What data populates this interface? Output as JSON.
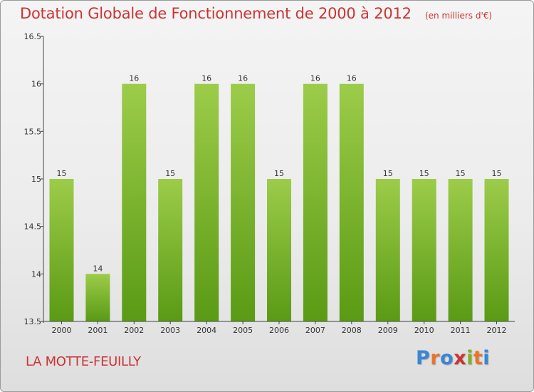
{
  "title": "Dotation Globale de Fonctionnement de 2000 à 2012",
  "unit": "(en milliers d'€)",
  "commune": "LA MOTTE-FEUILLY",
  "logo": {
    "text": "Proxiti",
    "colors": [
      "#3a86d4",
      "#e8752a",
      "#3a86d4",
      "#cc3333",
      "#7cb32a",
      "#e8752a",
      "#3a86d4"
    ]
  },
  "colors": {
    "title": "#cc3333",
    "bar_light": "#9ccc4a",
    "bar_dark": "#5a9a14",
    "axis": "#444444",
    "text": "#333333"
  },
  "chart_data": {
    "type": "bar",
    "categories": [
      "2000",
      "2001",
      "2002",
      "2003",
      "2004",
      "2005",
      "2006",
      "2007",
      "2008",
      "2009",
      "2010",
      "2011",
      "2012"
    ],
    "values": [
      15,
      14,
      16,
      15,
      16,
      16,
      15,
      16,
      16,
      15,
      15,
      15,
      15
    ],
    "data_labels": [
      "15",
      "14",
      "16",
      "15",
      "16",
      "16",
      "15",
      "16",
      "16",
      "15",
      "15",
      "15",
      "15"
    ],
    "ylim": [
      13.5,
      16.5
    ],
    "yticks": [
      "13.5",
      "14",
      "14.5",
      "15",
      "15.5",
      "16",
      "16.5"
    ],
    "title": "Dotation Globale de Fonctionnement de 2000 à 2012",
    "xlabel": "",
    "ylabel": "",
    "grid": false,
    "legend": "none"
  }
}
